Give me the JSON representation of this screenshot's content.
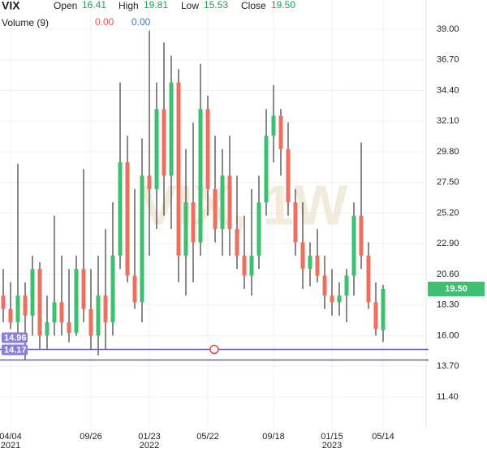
{
  "chart_data": {
    "type": "candlestick",
    "title": "VIX",
    "watermark": "VIX, 1W",
    "open_label": "Open",
    "high_label": "High",
    "low_label": "Low",
    "close_label": "Close",
    "last_close_label": "19.50",
    "volume_label": "Volume (9)",
    "volume_readouts": [
      "0.00",
      "0.00"
    ],
    "volume_colors": [
      "#ef5350",
      "#2f7bd9"
    ],
    "up_color": "#3cbf6e",
    "down_color": "#ef6f5e",
    "wick_color": "#111111",
    "hline_color": "#6a5fb5",
    "categories": [
      null,
      "04/04",
      null,
      null,
      null,
      null,
      null,
      null,
      null,
      null,
      null,
      null,
      "09/26",
      null,
      null,
      null,
      null,
      null,
      null,
      null,
      "01/23",
      null,
      null,
      null,
      null,
      null,
      null,
      null,
      "05/22",
      null,
      null,
      null,
      null,
      null,
      null,
      null,
      null,
      "09/18",
      null,
      null,
      null,
      null,
      null,
      null,
      null,
      "01/15",
      null,
      null,
      null,
      null,
      null,
      null,
      "05/14"
    ],
    "x_years": [
      null,
      "2021",
      null,
      null,
      null,
      null,
      null,
      null,
      null,
      null,
      null,
      null,
      null,
      null,
      null,
      null,
      null,
      null,
      null,
      null,
      "2022",
      null,
      null,
      null,
      null,
      null,
      null,
      null,
      null,
      null,
      null,
      null,
      null,
      null,
      null,
      null,
      null,
      null,
      null,
      null,
      null,
      null,
      null,
      null,
      null,
      "2023",
      null,
      null,
      null,
      null,
      null,
      null,
      null
    ],
    "open": [
      19,
      18,
      17,
      19,
      17.5,
      21,
      16,
      17,
      18.5,
      17,
      16.2,
      21,
      18,
      16,
      19,
      17,
      22,
      29,
      20.5,
      18.5,
      28,
      27,
      33,
      28,
      35,
      22,
      26,
      23,
      33,
      27,
      24,
      28,
      24,
      22,
      20.5,
      22,
      26,
      31,
      32.5,
      30,
      26,
      23,
      21,
      22,
      20.5,
      19,
      18.5,
      19,
      20.5,
      25,
      22,
      18.5,
      16.41
    ],
    "high": [
      21,
      20,
      28.9,
      20,
      22,
      21.5,
      19,
      25,
      22,
      21,
      22,
      28.5,
      21,
      22,
      24,
      26,
      35,
      31,
      27,
      30.8,
      38.9,
      35,
      38,
      37,
      36,
      30,
      32,
      36.4,
      34,
      31,
      30,
      31,
      28,
      25,
      27,
      28,
      33,
      34.8,
      33,
      32,
      27,
      26,
      23,
      24,
      22,
      21,
      20,
      21,
      26,
      30.5,
      23,
      20,
      19.81
    ],
    "low": [
      17,
      16.5,
      16,
      14.2,
      16,
      15,
      15,
      16,
      16,
      15.5,
      16,
      17,
      15,
      14.5,
      15,
      16,
      21,
      20,
      18,
      17,
      22,
      24,
      25,
      24,
      20,
      19,
      20,
      22,
      25,
      23,
      22,
      22,
      21,
      19.5,
      19,
      21,
      25,
      29,
      28,
      25,
      22,
      19.5,
      19.7,
      20,
      18,
      17.5,
      17.5,
      17,
      19,
      21,
      18,
      16,
      15.53
    ],
    "close": [
      18,
      17,
      19,
      17.5,
      21,
      16,
      17,
      18.5,
      17,
      16.2,
      21,
      18,
      16,
      19,
      17,
      22,
      29,
      20.5,
      18.5,
      28,
      27,
      33,
      28,
      35,
      22,
      26,
      23,
      33,
      27,
      24,
      28,
      24,
      22,
      20.5,
      22,
      26,
      31,
      32.5,
      30,
      26,
      23,
      21,
      22,
      20.5,
      19,
      18.5,
      19,
      20.5,
      25,
      22,
      18.5,
      16.5,
      19.5
    ],
    "hlines": [
      14.96,
      14.17
    ],
    "ylim": [
      9.02,
      41.19
    ],
    "yticks": [
      {
        "value": 39,
        "label": "39.00"
      },
      {
        "value": 36.7,
        "label": "36.70"
      },
      {
        "value": 34.4,
        "label": "34.40"
      },
      {
        "value": 32.1,
        "label": "32.10"
      },
      {
        "value": 29.8,
        "label": "29.80"
      },
      {
        "value": 27.5,
        "label": "27.50"
      },
      {
        "value": 25.2,
        "label": "25.20"
      },
      {
        "value": 22.9,
        "label": "22.90"
      },
      {
        "value": 20.6,
        "label": "20.60"
      },
      {
        "value": 18.3,
        "label": "18.30"
      },
      {
        "value": 16,
        "label": "16.00"
      },
      {
        "value": 13.7,
        "label": "13.70"
      },
      {
        "value": 11.4,
        "label": "11.40"
      }
    ],
    "grid": true
  }
}
